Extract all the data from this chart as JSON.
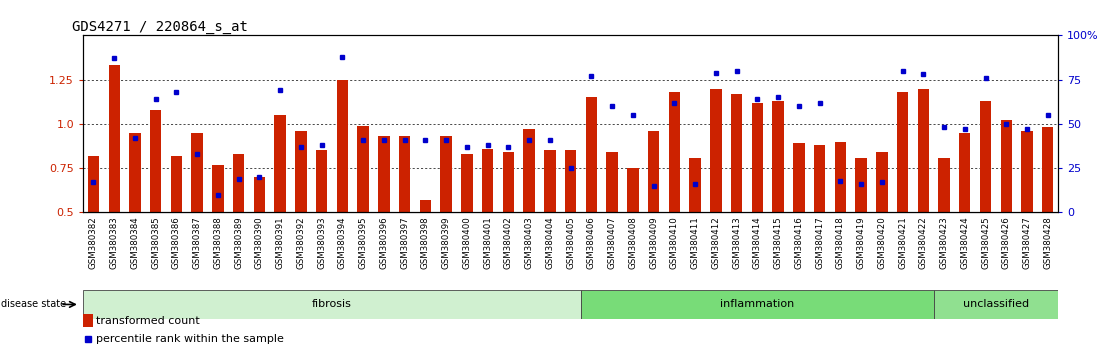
{
  "title": "GDS4271 / 220864_s_at",
  "samples": [
    "GSM380382",
    "GSM380383",
    "GSM380384",
    "GSM380385",
    "GSM380386",
    "GSM380387",
    "GSM380388",
    "GSM380389",
    "GSM380390",
    "GSM380391",
    "GSM380392",
    "GSM380393",
    "GSM380394",
    "GSM380395",
    "GSM380396",
    "GSM380397",
    "GSM380398",
    "GSM380399",
    "GSM380400",
    "GSM380401",
    "GSM380402",
    "GSM380403",
    "GSM380404",
    "GSM380405",
    "GSM380406",
    "GSM380407",
    "GSM380408",
    "GSM380409",
    "GSM380410",
    "GSM380411",
    "GSM380412",
    "GSM380413",
    "GSM380414",
    "GSM380415",
    "GSM380416",
    "GSM380417",
    "GSM380418",
    "GSM380419",
    "GSM380420",
    "GSM380421",
    "GSM380422",
    "GSM380423",
    "GSM380424",
    "GSM380425",
    "GSM380426",
    "GSM380427",
    "GSM380428"
  ],
  "bar_values": [
    0.82,
    1.33,
    0.95,
    1.08,
    0.82,
    0.95,
    0.77,
    0.83,
    0.7,
    1.05,
    0.96,
    0.85,
    1.25,
    0.99,
    0.93,
    0.93,
    0.57,
    0.93,
    0.83,
    0.86,
    0.84,
    0.97,
    0.85,
    0.85,
    1.15,
    0.84,
    0.75,
    0.96,
    1.18,
    0.81,
    1.2,
    1.17,
    1.12,
    1.13,
    0.89,
    0.88,
    0.9,
    0.81,
    0.84,
    1.18,
    1.2,
    0.81,
    0.95,
    1.13,
    1.02,
    0.96,
    0.98
  ],
  "percentile_values": [
    0.67,
    1.37,
    0.92,
    1.14,
    1.18,
    0.83,
    0.6,
    0.69,
    0.7,
    1.19,
    0.87,
    0.88,
    1.38,
    0.91,
    0.91,
    0.91,
    0.91,
    0.91,
    0.87,
    0.88,
    0.87,
    0.91,
    0.91,
    0.75,
    1.27,
    1.1,
    1.05,
    0.65,
    1.12,
    0.66,
    1.29,
    1.3,
    1.14,
    1.15,
    1.1,
    1.12,
    0.68,
    0.66,
    0.67,
    1.3,
    1.28,
    0.98,
    0.97,
    1.26,
    1.0,
    0.97,
    1.05
  ],
  "groups": [
    {
      "label": "fibrosis",
      "start": 0,
      "end": 24,
      "color": "#d0f0d0"
    },
    {
      "label": "inflammation",
      "start": 24,
      "end": 41,
      "color": "#78dc78"
    },
    {
      "label": "unclassified",
      "start": 41,
      "end": 47,
      "color": "#90e090"
    }
  ],
  "ylim": [
    0.5,
    1.5
  ],
  "yticks_left": [
    0.5,
    0.75,
    1.0,
    1.25
  ],
  "yticks_right": [
    0,
    25,
    50,
    75,
    100
  ],
  "bar_color": "#cc2200",
  "dot_color": "#0000cc",
  "xtick_bg": "#d8d8d8",
  "title_fontsize": 10,
  "axis_fontsize": 8,
  "legend_fontsize": 8,
  "group_fontsize": 8
}
